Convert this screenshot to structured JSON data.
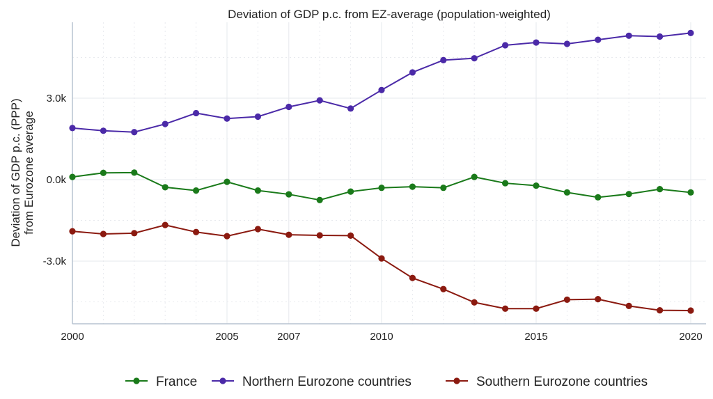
{
  "chart_data": {
    "type": "line",
    "title": "Deviation of GDP p.c. from EZ-average (population-weighted)",
    "ylabel_line1": "Deviation of GDP p.c. (PPP)",
    "ylabel_line2": "from Eurozone average",
    "xlabel": "",
    "x": [
      2000,
      2001,
      2002,
      2003,
      2004,
      2005,
      2006,
      2007,
      2008,
      2009,
      2010,
      2011,
      2012,
      2013,
      2014,
      2015,
      2016,
      2017,
      2018,
      2019,
      2020
    ],
    "x_ticks": [
      2000,
      2005,
      2007,
      2010,
      2015,
      2020
    ],
    "x_tick_labels": [
      "2000",
      "2005",
      "2007",
      "2010",
      "2015",
      "2020"
    ],
    "xlim": [
      2000,
      2020.5
    ],
    "y_ticks": [
      -3000,
      0,
      3000
    ],
    "y_tick_labels": [
      "-3.0k",
      "0.0k",
      "3.0k"
    ],
    "y_minor_ticks": [
      -4500,
      -1500,
      1500,
      4500
    ],
    "ylim": [
      -5300,
      5900
    ],
    "grid": true,
    "legend_position": "bottom",
    "series": [
      {
        "name": "France",
        "color": "#1a7a1a",
        "values": [
          100,
          250,
          260,
          -280,
          -400,
          -80,
          -400,
          -540,
          -750,
          -440,
          -300,
          -260,
          -300,
          100,
          -130,
          -220,
          -470,
          -650,
          -530,
          -350,
          -470
        ]
      },
      {
        "name": "Northern Eurozone countries",
        "color": "#4b2aa8",
        "values": [
          1900,
          1800,
          1750,
          2050,
          2450,
          2250,
          2320,
          2680,
          2920,
          2620,
          3300,
          3950,
          4400,
          4470,
          4950,
          5050,
          5000,
          5150,
          5300,
          5270,
          5400
        ]
      },
      {
        "name": "Southern Eurozone countries",
        "color": "#8b1a10",
        "values": [
          -1900,
          -2000,
          -1970,
          -1670,
          -1930,
          -2080,
          -1820,
          -2030,
          -2050,
          -2060,
          -2900,
          -3620,
          -4030,
          -4520,
          -4750,
          -4750,
          -4420,
          -4400,
          -4650,
          -4810,
          -4820
        ]
      }
    ]
  }
}
